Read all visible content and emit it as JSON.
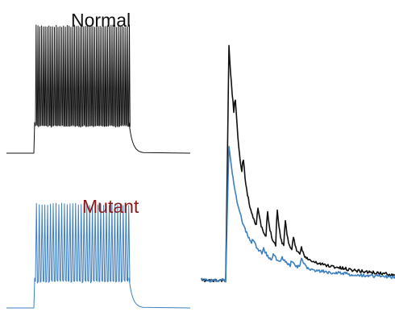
{
  "labels": {
    "normal": "Normal",
    "mutant": "Mutant"
  }
}
